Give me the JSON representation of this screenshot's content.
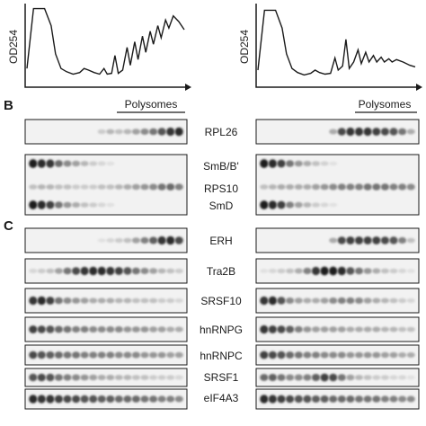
{
  "panels": {
    "b": "B",
    "c": "C"
  },
  "profiles": {
    "ylabel": "OD254",
    "left": [
      [
        0,
        0.22
      ],
      [
        0.6,
        0.96
      ],
      [
        1.6,
        0.96
      ],
      [
        2.2,
        0.75
      ],
      [
        2.6,
        0.4
      ],
      [
        3.1,
        0.22
      ],
      [
        3.6,
        0.18
      ],
      [
        4.2,
        0.15
      ],
      [
        4.8,
        0.17
      ],
      [
        5.2,
        0.22
      ],
      [
        5.6,
        0.2
      ],
      [
        6.1,
        0.17
      ],
      [
        6.6,
        0.15
      ],
      [
        7.0,
        0.22
      ],
      [
        7.3,
        0.15
      ],
      [
        7.7,
        0.16
      ],
      [
        8.0,
        0.38
      ],
      [
        8.3,
        0.16
      ],
      [
        8.7,
        0.2
      ],
      [
        9.1,
        0.48
      ],
      [
        9.4,
        0.26
      ],
      [
        9.8,
        0.55
      ],
      [
        10.1,
        0.33
      ],
      [
        10.5,
        0.62
      ],
      [
        10.8,
        0.42
      ],
      [
        11.2,
        0.68
      ],
      [
        11.5,
        0.52
      ],
      [
        11.9,
        0.75
      ],
      [
        12.2,
        0.6
      ],
      [
        12.6,
        0.82
      ],
      [
        12.9,
        0.72
      ],
      [
        13.3,
        0.87
      ],
      [
        13.8,
        0.8
      ],
      [
        14.3,
        0.7
      ]
    ],
    "right": [
      [
        0,
        0.2
      ],
      [
        0.6,
        0.94
      ],
      [
        1.6,
        0.94
      ],
      [
        2.2,
        0.72
      ],
      [
        2.6,
        0.4
      ],
      [
        3.1,
        0.22
      ],
      [
        3.6,
        0.17
      ],
      [
        4.2,
        0.14
      ],
      [
        4.8,
        0.16
      ],
      [
        5.2,
        0.2
      ],
      [
        5.6,
        0.17
      ],
      [
        6.1,
        0.15
      ],
      [
        6.6,
        0.16
      ],
      [
        7.0,
        0.35
      ],
      [
        7.3,
        0.2
      ],
      [
        7.7,
        0.25
      ],
      [
        8.0,
        0.58
      ],
      [
        8.3,
        0.22
      ],
      [
        8.7,
        0.3
      ],
      [
        9.1,
        0.45
      ],
      [
        9.4,
        0.28
      ],
      [
        9.8,
        0.42
      ],
      [
        10.1,
        0.3
      ],
      [
        10.5,
        0.38
      ],
      [
        10.8,
        0.3
      ],
      [
        11.2,
        0.36
      ],
      [
        11.5,
        0.3
      ],
      [
        11.9,
        0.34
      ],
      [
        12.2,
        0.3
      ],
      [
        12.6,
        0.33
      ],
      [
        13.2,
        0.3
      ],
      [
        13.8,
        0.26
      ],
      [
        14.3,
        0.24
      ]
    ]
  },
  "polysomes_label": "Polysomes",
  "blots": [
    {
      "label": "RPL26",
      "left": [
        0,
        0,
        0,
        0,
        0,
        0,
        0,
        0,
        0.15,
        0.25,
        0.2,
        0.25,
        0.35,
        0.45,
        0.55,
        0.7,
        0.85,
        0.9
      ],
      "right": [
        0,
        0,
        0,
        0,
        0,
        0,
        0,
        0,
        0.3,
        0.75,
        0.85,
        0.85,
        0.85,
        0.8,
        0.75,
        0.7,
        0.55,
        0.3
      ]
    },
    {
      "label": "SmB/B'",
      "left": [
        0.95,
        0.9,
        0.85,
        0.6,
        0.45,
        0.35,
        0.25,
        0.15,
        0.1,
        0.05,
        0,
        0,
        0,
        0,
        0,
        0,
        0,
        0
      ],
      "right": [
        0.95,
        0.9,
        0.8,
        0.55,
        0.4,
        0.3,
        0.2,
        0.12,
        0.05,
        0,
        0,
        0,
        0,
        0,
        0,
        0,
        0,
        0
      ]
    },
    {
      "label": "RPS10",
      "left": [
        0.2,
        0.25,
        0.25,
        0.2,
        0.2,
        0.15,
        0.15,
        0.15,
        0.2,
        0.2,
        0.25,
        0.3,
        0.35,
        0.4,
        0.45,
        0.55,
        0.6,
        0.5
      ],
      "right": [
        0.2,
        0.25,
        0.3,
        0.3,
        0.3,
        0.3,
        0.35,
        0.4,
        0.45,
        0.5,
        0.5,
        0.5,
        0.55,
        0.55,
        0.55,
        0.5,
        0.5,
        0.45
      ]
    },
    {
      "label": "SmD",
      "left": [
        0.95,
        0.9,
        0.8,
        0.55,
        0.4,
        0.3,
        0.2,
        0.15,
        0.1,
        0.05,
        0,
        0,
        0,
        0,
        0,
        0,
        0,
        0
      ],
      "right": [
        0.95,
        0.9,
        0.8,
        0.5,
        0.35,
        0.25,
        0.15,
        0.1,
        0.05,
        0,
        0,
        0,
        0,
        0,
        0,
        0,
        0,
        0
      ]
    },
    {
      "label": "ERH",
      "left": [
        0,
        0,
        0,
        0,
        0,
        0,
        0,
        0,
        0.05,
        0.1,
        0.15,
        0.2,
        0.35,
        0.5,
        0.65,
        0.85,
        0.9,
        0.75
      ],
      "right": [
        0,
        0,
        0,
        0,
        0,
        0,
        0,
        0,
        0.3,
        0.75,
        0.8,
        0.8,
        0.8,
        0.8,
        0.75,
        0.7,
        0.5,
        0.2
      ]
    },
    {
      "label": "Tra2B",
      "left": [
        0.1,
        0.15,
        0.2,
        0.35,
        0.55,
        0.75,
        0.85,
        0.9,
        0.9,
        0.85,
        0.8,
        0.7,
        0.55,
        0.45,
        0.35,
        0.25,
        0.2,
        0.15
      ],
      "right": [
        0.05,
        0.1,
        0.15,
        0.2,
        0.3,
        0.5,
        0.85,
        0.95,
        0.95,
        0.9,
        0.7,
        0.55,
        0.4,
        0.3,
        0.2,
        0.15,
        0.1,
        0.05
      ]
    },
    {
      "label": "SRSF10",
      "left": [
        0.85,
        0.9,
        0.8,
        0.55,
        0.45,
        0.4,
        0.35,
        0.3,
        0.3,
        0.3,
        0.25,
        0.25,
        0.2,
        0.2,
        0.2,
        0.15,
        0.15,
        0.1
      ],
      "right": [
        0.85,
        0.9,
        0.7,
        0.45,
        0.35,
        0.3,
        0.3,
        0.35,
        0.45,
        0.5,
        0.5,
        0.45,
        0.35,
        0.3,
        0.25,
        0.2,
        0.15,
        0.1
      ]
    },
    {
      "label": "hnRNPG",
      "left": [
        0.8,
        0.75,
        0.7,
        0.6,
        0.55,
        0.5,
        0.5,
        0.45,
        0.45,
        0.45,
        0.45,
        0.4,
        0.4,
        0.4,
        0.35,
        0.35,
        0.3,
        0.3
      ],
      "right": [
        0.85,
        0.8,
        0.75,
        0.65,
        0.5,
        0.4,
        0.35,
        0.35,
        0.35,
        0.35,
        0.3,
        0.3,
        0.3,
        0.3,
        0.25,
        0.25,
        0.2,
        0.2
      ]
    },
    {
      "label": "hnRNPC",
      "left": [
        0.75,
        0.7,
        0.65,
        0.6,
        0.55,
        0.55,
        0.5,
        0.5,
        0.5,
        0.5,
        0.45,
        0.45,
        0.45,
        0.4,
        0.4,
        0.4,
        0.35,
        0.35
      ],
      "right": [
        0.8,
        0.75,
        0.7,
        0.6,
        0.55,
        0.5,
        0.5,
        0.45,
        0.45,
        0.45,
        0.4,
        0.4,
        0.4,
        0.4,
        0.35,
        0.35,
        0.3,
        0.3
      ]
    },
    {
      "label": "SRSF1",
      "left": [
        0.7,
        0.75,
        0.7,
        0.55,
        0.5,
        0.45,
        0.4,
        0.35,
        0.3,
        0.3,
        0.25,
        0.25,
        0.2,
        0.2,
        0.15,
        0.15,
        0.15,
        0.1
      ],
      "right": [
        0.6,
        0.65,
        0.55,
        0.45,
        0.45,
        0.5,
        0.65,
        0.8,
        0.75,
        0.55,
        0.35,
        0.25,
        0.2,
        0.15,
        0.15,
        0.1,
        0.1,
        0.05
      ]
    },
    {
      "label": "eIF4A3",
      "left": [
        0.9,
        0.85,
        0.85,
        0.8,
        0.75,
        0.75,
        0.7,
        0.7,
        0.65,
        0.65,
        0.6,
        0.6,
        0.6,
        0.55,
        0.55,
        0.5,
        0.5,
        0.45
      ],
      "right": [
        0.9,
        0.85,
        0.8,
        0.75,
        0.7,
        0.7,
        0.65,
        0.65,
        0.6,
        0.6,
        0.6,
        0.55,
        0.55,
        0.55,
        0.5,
        0.5,
        0.45,
        0.45
      ]
    }
  ]
}
